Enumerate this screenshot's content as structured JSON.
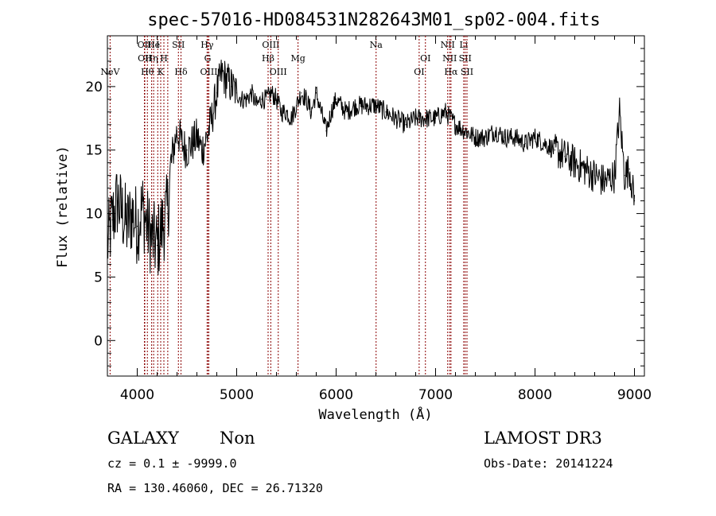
{
  "chart_data": {
    "type": "line",
    "title": "spec-57016-HD084531N282643M01_sp02-004.fits",
    "xlabel": "Wavelength (Å)",
    "ylabel": "Flux (relative)",
    "xlim": [
      3700,
      9100
    ],
    "ylim": [
      -2.8,
      24.0
    ],
    "xticks": [
      4000,
      5000,
      6000,
      7000,
      8000,
      9000
    ],
    "yticks": [
      0,
      5,
      10,
      15,
      20
    ],
    "grid": false,
    "colors": {
      "spectrum": "#000000",
      "line_marker": "#8b0000",
      "axes": "#000000"
    },
    "series": [
      {
        "x": [
          3700,
          3750,
          3800,
          3850,
          3900,
          3950,
          4000,
          4050,
          4100,
          4150,
          4200,
          4250,
          4300,
          4350,
          4400,
          4450,
          4500,
          4550,
          4600,
          4650,
          4700,
          4750,
          4800,
          4850,
          4900,
          4950,
          5000,
          5050,
          5100,
          5150,
          5200,
          5250,
          5300,
          5350,
          5400,
          5450,
          5500,
          5550,
          5600,
          5650,
          5700,
          5750,
          5800,
          5850,
          5900,
          5950,
          6000,
          6100,
          6200,
          6300,
          6400,
          6500,
          6600,
          6700,
          6800,
          6900,
          7000,
          7100,
          7200,
          7300,
          7400,
          7500,
          7600,
          7700,
          7800,
          7900,
          8000,
          8100,
          8200,
          8300,
          8400,
          8500,
          8600,
          8700,
          8800,
          8850,
          8900,
          8950,
          9000
        ],
        "y": [
          7.5,
          9.5,
          11.0,
          10.0,
          9.0,
          10.0,
          9.0,
          10.5,
          9.0,
          8.0,
          7.5,
          9.0,
          10.0,
          14.5,
          16.5,
          15.5,
          15.0,
          15.5,
          16.0,
          15.0,
          16.0,
          17.5,
          19.5,
          21.0,
          20.5,
          20.0,
          19.5,
          19.0,
          19.0,
          19.5,
          18.5,
          19.0,
          19.0,
          19.5,
          19.0,
          18.0,
          18.0,
          17.5,
          18.5,
          19.5,
          19.0,
          18.0,
          19.5,
          18.0,
          16.5,
          18.0,
          19.0,
          18.0,
          18.5,
          18.5,
          18.5,
          18.0,
          17.5,
          17.0,
          17.5,
          17.5,
          17.5,
          18.0,
          17.0,
          16.5,
          16.0,
          16.0,
          16.5,
          16.0,
          16.0,
          15.5,
          16.0,
          15.5,
          15.0,
          14.5,
          14.0,
          13.5,
          13.0,
          12.5,
          13.0,
          18.0,
          13.0,
          13.5,
          11.0
        ]
      }
    ],
    "line_markers": [
      {
        "wl": 3727,
        "top": "NeV",
        "row": 2
      },
      {
        "wl": 4072,
        "top": "OII",
        "row": 0
      },
      {
        "wl": 4076,
        "top": "OII",
        "row": 1
      },
      {
        "wl": 4102,
        "top": "Hθ",
        "row": 2
      },
      {
        "wl": 4145,
        "top": "Hη",
        "row": 1
      },
      {
        "wl": 4165,
        "top": "He",
        "row": 0
      },
      {
        "wl": 4206,
        "top": "I",
        "row": 0
      },
      {
        "wl": 4236,
        "top": "K",
        "row": 2
      },
      {
        "wl": 4268,
        "top": "H",
        "row": 1
      },
      {
        "wl": 4307,
        "top": "",
        "row": 0
      },
      {
        "wl": 4414,
        "top": "SII",
        "row": 0
      },
      {
        "wl": 4440,
        "top": "Hδ",
        "row": 2
      },
      {
        "wl": 4703,
        "top": "Hγ",
        "row": 0
      },
      {
        "wl": 4708,
        "top": "G",
        "row": 1
      },
      {
        "wl": 4720,
        "top": "OIII",
        "row": 2
      },
      {
        "wl": 5316,
        "top": "Hβ",
        "row": 1
      },
      {
        "wl": 5343,
        "top": "OIII",
        "row": 0
      },
      {
        "wl": 5418,
        "top": "OIII",
        "row": 2
      },
      {
        "wl": 5617,
        "top": "Mg",
        "row": 1
      },
      {
        "wl": 6402,
        "top": "Na",
        "row": 0
      },
      {
        "wl": 6835,
        "top": "OI",
        "row": 2
      },
      {
        "wl": 6898,
        "top": "OI",
        "row": 1
      },
      {
        "wl": 7122,
        "top": "NII",
        "row": 0
      },
      {
        "wl": 7142,
        "top": "NII",
        "row": 1
      },
      {
        "wl": 7155,
        "top": "Hα",
        "row": 2
      },
      {
        "wl": 7283,
        "top": "Li",
        "row": 0
      },
      {
        "wl": 7298,
        "top": "SII",
        "row": 1
      },
      {
        "wl": 7316,
        "top": "SII",
        "row": 2
      }
    ]
  },
  "info": {
    "class_label": "GALAXY",
    "subclass_label": "Non",
    "survey_label": "LAMOST DR3",
    "cz_text": "cz = 0.1 ± -9999.0",
    "obs_date_text": "Obs-Date: 20141224",
    "radec_text": "RA = 130.46060, DEC =  26.71320"
  }
}
